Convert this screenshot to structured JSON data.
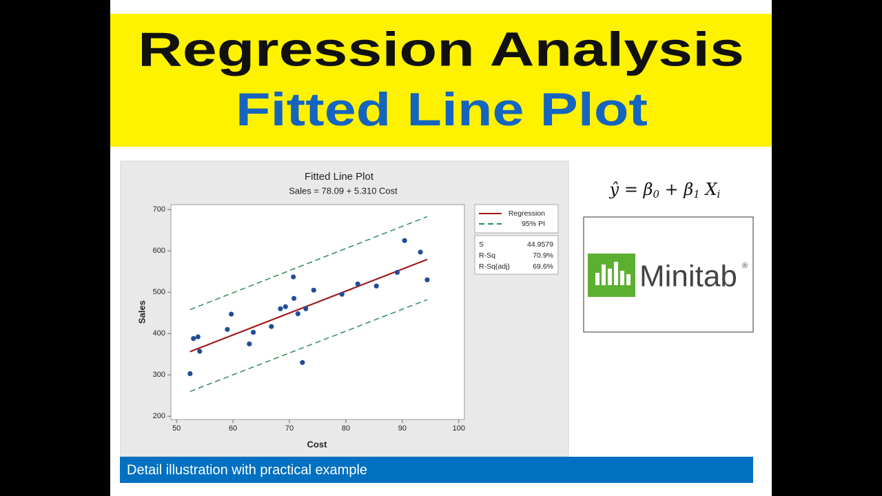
{
  "slide_title": "Regression Analysis",
  "slide_subtitle": "Fitted Line Plot",
  "formula": [
    "ŷ = β",
    "0",
    " + β",
    "1",
    " X",
    "i"
  ],
  "logo_text": "Minitab",
  "logo_mark": "®",
  "footer": "Detail illustration with practical example",
  "chart_data": {
    "type": "scatter",
    "title": "Fitted Line Plot",
    "subtitle": "Sales = 78.09 + 5.310 Cost",
    "x_label": "Cost",
    "y_label": "Sales",
    "xlim": [
      49,
      101
    ],
    "ylim": [
      192,
      712
    ],
    "xticks": [
      50,
      60,
      70,
      80,
      90,
      100
    ],
    "yticks": [
      200,
      300,
      400,
      500,
      600,
      700
    ],
    "points": {
      "color": "#1f4e99",
      "x": [
        52.4,
        53.0,
        53.8,
        54.1,
        59.0,
        59.7,
        62.9,
        63.6,
        66.8,
        68.4,
        69.3,
        70.7,
        70.8,
        71.5,
        72.3,
        72.9,
        74.3,
        79.3,
        82.1,
        85.4,
        89.1,
        90.4,
        93.2,
        94.4
      ],
      "values": [
        303,
        388,
        392,
        357,
        410,
        447,
        375,
        403,
        417,
        460,
        465,
        537,
        485,
        448,
        330,
        460,
        505,
        495,
        520,
        515,
        548,
        625,
        597,
        530
      ]
    },
    "series": [
      {
        "name": "Regression",
        "color": "#a01c1c",
        "style": "solid",
        "x": [
          52.4,
          94.4
        ],
        "values": [
          356.3,
          579.3
        ]
      },
      {
        "name": "95% PI",
        "color": "#2e8b57",
        "style": "dashed",
        "x": [
          52.4,
          94.4
        ],
        "values": [
          458,
          683
        ],
        "lower": [
          260,
          482
        ]
      }
    ],
    "stats": [
      {
        "label": "S",
        "value": "44.9579"
      },
      {
        "label": "R-Sq",
        "value": "70.9%"
      },
      {
        "label": "R-Sq(adj)",
        "value": "69.6%"
      }
    ]
  }
}
